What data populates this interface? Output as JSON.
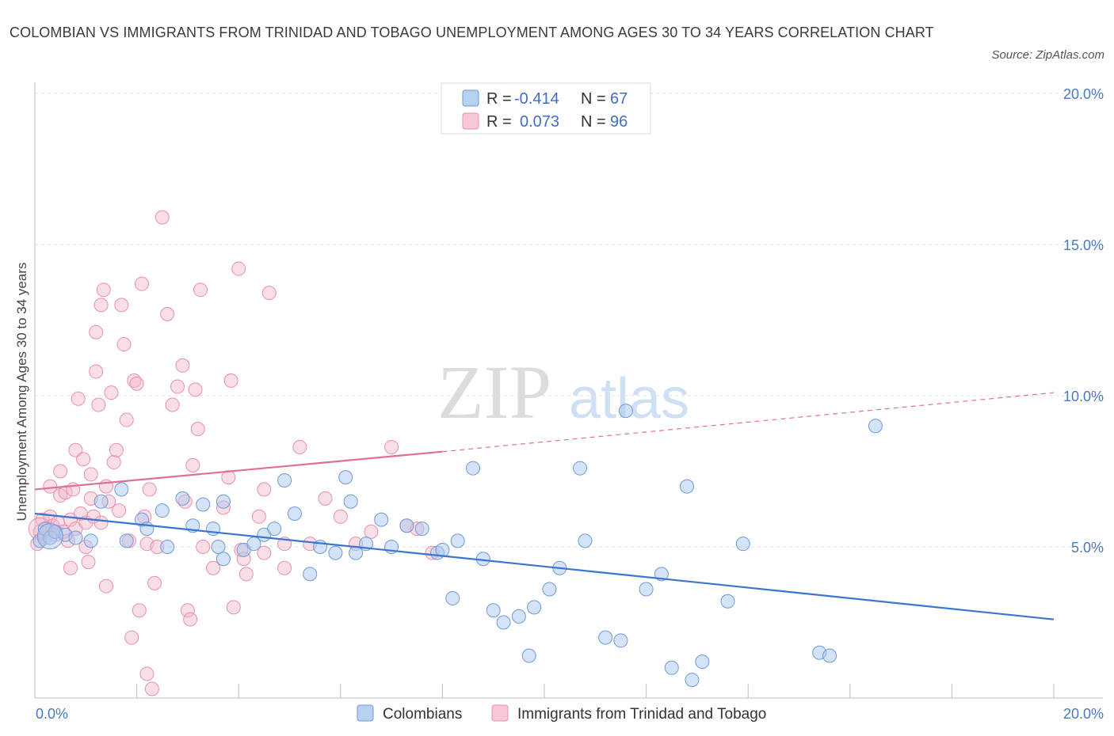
{
  "title": "COLOMBIAN VS IMMIGRANTS FROM TRINIDAD AND TOBAGO UNEMPLOYMENT AMONG AGES 30 TO 34 YEARS CORRELATION CHART",
  "source": "Source: ZipAtlas.com",
  "watermark": {
    "zip": "ZIP",
    "atlas": "atlas"
  },
  "colors": {
    "blue_fill": "#a9c8f0",
    "blue_stroke": "#6f9ad8",
    "blue_line": "#3a76d0",
    "pink_fill": "#f4b6c8",
    "pink_stroke": "#e890ac",
    "pink_line": "#e06f98",
    "grid": "#e2e2e2",
    "tick_text": "#4a78c0"
  },
  "legend": {
    "rows": [
      {
        "r_label": "R =",
        "r_value": "-0.414",
        "n_label": "N =",
        "n_value": "67"
      },
      {
        "r_label": "R =",
        "r_value": "0.073",
        "n_label": "N =",
        "n_value": "96"
      }
    ]
  },
  "bottom_legend": {
    "colombians": "Colombians",
    "trinidad": "Immigrants from Trinidad and Tobago"
  },
  "chart_data": {
    "type": "scatter",
    "ylabel": "Unemployment Among Ages 30 to 34 years",
    "xlim": [
      0,
      20
    ],
    "ylim": [
      0,
      20
    ],
    "x_tick_labels": [
      "0.0%",
      "20.0%"
    ],
    "y_ticks": [
      5,
      10,
      15,
      20
    ],
    "y_tick_labels": [
      "5.0%",
      "10.0%",
      "15.0%",
      "20.0%"
    ],
    "grid": true,
    "legend_position": "top-center",
    "series": [
      {
        "name": "Colombians",
        "R": -0.414,
        "N": 67,
        "trend": {
          "x0": 0,
          "y0": 6.1,
          "x1": 20,
          "y1": 2.6
        },
        "points": [
          [
            0.1,
            5.2
          ],
          [
            0.2,
            5.6
          ],
          [
            0.3,
            5.3
          ],
          [
            0.4,
            5.5
          ],
          [
            0.6,
            5.4
          ],
          [
            0.8,
            5.3
          ],
          [
            1.1,
            5.2
          ],
          [
            1.3,
            6.5
          ],
          [
            1.7,
            6.9
          ],
          [
            1.8,
            5.2
          ],
          [
            2.1,
            5.9
          ],
          [
            2.2,
            5.6
          ],
          [
            2.5,
            6.2
          ],
          [
            2.6,
            5.0
          ],
          [
            2.9,
            6.6
          ],
          [
            3.1,
            5.7
          ],
          [
            3.3,
            6.4
          ],
          [
            3.5,
            5.6
          ],
          [
            3.6,
            5.0
          ],
          [
            3.7,
            6.5
          ],
          [
            3.7,
            4.6
          ],
          [
            4.1,
            4.9
          ],
          [
            4.3,
            5.1
          ],
          [
            4.5,
            5.4
          ],
          [
            4.7,
            5.6
          ],
          [
            4.9,
            7.2
          ],
          [
            5.1,
            6.1
          ],
          [
            5.4,
            4.1
          ],
          [
            5.6,
            5.0
          ],
          [
            5.9,
            4.8
          ],
          [
            6.1,
            7.3
          ],
          [
            6.2,
            6.5
          ],
          [
            6.3,
            4.8
          ],
          [
            6.5,
            5.1
          ],
          [
            6.8,
            5.9
          ],
          [
            7.0,
            5.0
          ],
          [
            7.3,
            5.7
          ],
          [
            7.6,
            5.6
          ],
          [
            7.9,
            4.8
          ],
          [
            8.0,
            4.9
          ],
          [
            8.2,
            3.3
          ],
          [
            8.3,
            5.2
          ],
          [
            8.6,
            7.6
          ],
          [
            8.8,
            4.6
          ],
          [
            9.0,
            2.9
          ],
          [
            9.2,
            2.5
          ],
          [
            9.5,
            2.7
          ],
          [
            9.7,
            1.4
          ],
          [
            9.8,
            3.0
          ],
          [
            10.1,
            3.6
          ],
          [
            10.3,
            4.3
          ],
          [
            10.7,
            7.6
          ],
          [
            10.8,
            5.2
          ],
          [
            11.2,
            2.0
          ],
          [
            11.5,
            1.9
          ],
          [
            11.6,
            9.5
          ],
          [
            12.0,
            3.6
          ],
          [
            12.3,
            4.1
          ],
          [
            12.5,
            1.0
          ],
          [
            12.8,
            7.0
          ],
          [
            12.9,
            0.6
          ],
          [
            13.1,
            1.2
          ],
          [
            13.6,
            3.2
          ],
          [
            13.9,
            5.1
          ],
          [
            15.4,
            1.5
          ],
          [
            15.6,
            1.4
          ],
          [
            16.5,
            9.0
          ]
        ]
      },
      {
        "name": "Immigrants from Trinidad and Tobago",
        "R": 0.073,
        "N": 96,
        "trend": {
          "x0": 0,
          "y0": 6.9,
          "x1": 8.0,
          "y1": 8.15,
          "dashed_x1": 20,
          "dashed_y1": 10.1
        },
        "points": [
          [
            0.05,
            5.1
          ],
          [
            0.1,
            5.5
          ],
          [
            0.15,
            5.9
          ],
          [
            0.2,
            5.3
          ],
          [
            0.25,
            5.6
          ],
          [
            0.3,
            6.0
          ],
          [
            0.3,
            7.0
          ],
          [
            0.35,
            5.7
          ],
          [
            0.4,
            5.4
          ],
          [
            0.45,
            5.8
          ],
          [
            0.5,
            7.5
          ],
          [
            0.5,
            6.7
          ],
          [
            0.55,
            5.5
          ],
          [
            0.6,
            6.8
          ],
          [
            0.65,
            5.2
          ],
          [
            0.7,
            5.9
          ],
          [
            0.7,
            4.3
          ],
          [
            0.75,
            6.9
          ],
          [
            0.8,
            5.6
          ],
          [
            0.8,
            8.2
          ],
          [
            0.85,
            9.9
          ],
          [
            0.9,
            6.1
          ],
          [
            0.95,
            7.9
          ],
          [
            1.0,
            5.8
          ],
          [
            1.0,
            5.0
          ],
          [
            1.05,
            4.5
          ],
          [
            1.1,
            6.6
          ],
          [
            1.1,
            7.4
          ],
          [
            1.15,
            6.0
          ],
          [
            1.2,
            10.8
          ],
          [
            1.2,
            12.1
          ],
          [
            1.25,
            9.7
          ],
          [
            1.3,
            5.8
          ],
          [
            1.3,
            13.0
          ],
          [
            1.35,
            13.5
          ],
          [
            1.4,
            7.0
          ],
          [
            1.4,
            3.7
          ],
          [
            1.45,
            6.5
          ],
          [
            1.5,
            10.1
          ],
          [
            1.55,
            7.8
          ],
          [
            1.6,
            8.2
          ],
          [
            1.65,
            6.2
          ],
          [
            1.7,
            13.0
          ],
          [
            1.75,
            11.7
          ],
          [
            1.8,
            9.2
          ],
          [
            1.85,
            5.2
          ],
          [
            1.9,
            2.0
          ],
          [
            1.95,
            10.5
          ],
          [
            2.0,
            10.4
          ],
          [
            2.05,
            2.9
          ],
          [
            2.1,
            13.7
          ],
          [
            2.15,
            6.0
          ],
          [
            2.2,
            0.8
          ],
          [
            2.2,
            5.1
          ],
          [
            2.25,
            6.9
          ],
          [
            2.3,
            0.3
          ],
          [
            2.35,
            3.8
          ],
          [
            2.4,
            5.0
          ],
          [
            2.5,
            15.9
          ],
          [
            2.6,
            12.7
          ],
          [
            2.7,
            9.7
          ],
          [
            2.8,
            10.3
          ],
          [
            2.9,
            11.0
          ],
          [
            2.95,
            6.5
          ],
          [
            3.0,
            2.9
          ],
          [
            3.05,
            2.6
          ],
          [
            3.1,
            7.7
          ],
          [
            3.15,
            10.2
          ],
          [
            3.2,
            8.9
          ],
          [
            3.25,
            13.5
          ],
          [
            3.3,
            5.0
          ],
          [
            3.5,
            4.3
          ],
          [
            3.7,
            6.3
          ],
          [
            3.8,
            7.3
          ],
          [
            3.85,
            10.5
          ],
          [
            3.9,
            3.0
          ],
          [
            4.0,
            14.2
          ],
          [
            4.05,
            4.9
          ],
          [
            4.1,
            4.6
          ],
          [
            4.15,
            4.1
          ],
          [
            4.4,
            6.0
          ],
          [
            4.5,
            4.8
          ],
          [
            4.5,
            6.9
          ],
          [
            4.6,
            13.4
          ],
          [
            4.9,
            5.1
          ],
          [
            4.9,
            4.3
          ],
          [
            5.2,
            8.3
          ],
          [
            5.4,
            5.1
          ],
          [
            5.7,
            6.6
          ],
          [
            6.0,
            6.0
          ],
          [
            6.3,
            5.1
          ],
          [
            6.6,
            5.5
          ],
          [
            7.0,
            8.3
          ],
          [
            7.3,
            5.7
          ],
          [
            7.5,
            5.6
          ],
          [
            7.8,
            4.8
          ]
        ]
      }
    ]
  }
}
